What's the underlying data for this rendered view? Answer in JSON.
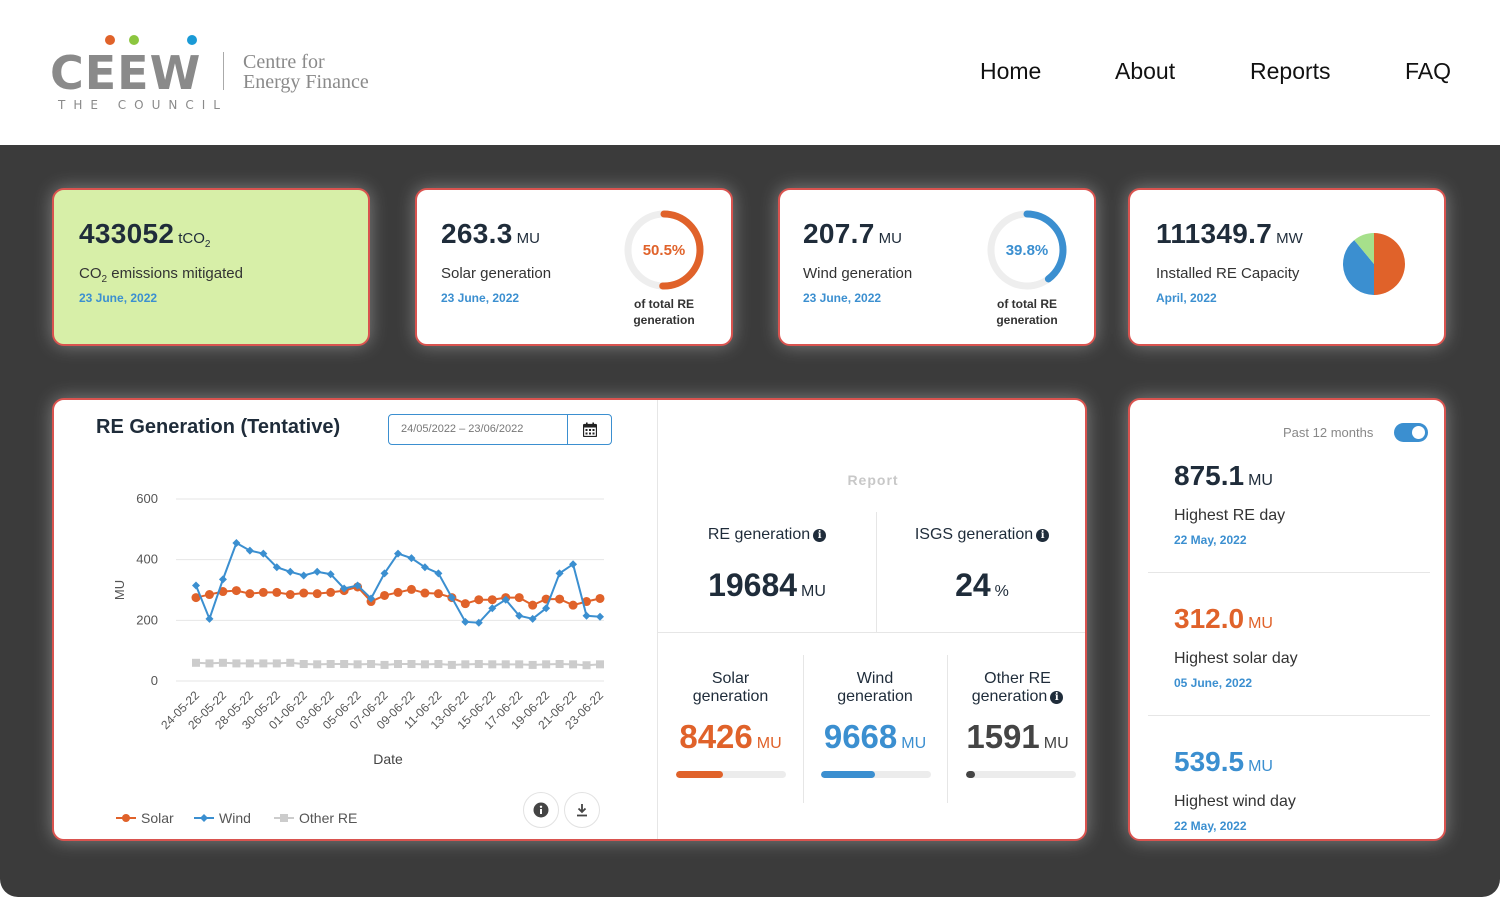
{
  "header": {
    "logo": {
      "word": "CEEW",
      "subtitle": "THE COUNCIL",
      "tagline_1": "Centre for",
      "tagline_2": "Energy Finance",
      "dot_colors": [
        "#e0622a",
        "#8cc63f",
        "#1a9ad6"
      ]
    },
    "nav": [
      {
        "label": "Home"
      },
      {
        "label": "About"
      },
      {
        "label": "Reports"
      },
      {
        "label": "FAQ"
      }
    ]
  },
  "kpis": {
    "emissions": {
      "value": "433052",
      "unit": "tCO",
      "unit_sub": "2",
      "label_pre": "CO",
      "label_sub": "2",
      "label_post": " emissions mitigated",
      "date": "23 June, 2022"
    },
    "solar": {
      "value": "263.3",
      "unit": "MU",
      "label": "Solar generation",
      "date": "23 June, 2022",
      "share_text": "50.5%",
      "share": 50.5,
      "caption_1": "of total RE",
      "caption_2": "generation",
      "color": "#e0622a"
    },
    "wind": {
      "value": "207.7",
      "unit": "MU",
      "label": "Wind generation",
      "date": "23 June, 2022",
      "share_text": "39.8%",
      "share": 39.8,
      "caption_1": "of total RE",
      "caption_2": "generation",
      "color": "#3b8fd0"
    },
    "capacity": {
      "value": "111349.7",
      "unit": "MW",
      "label": "Installed RE Capacity",
      "date": "April, 2022",
      "pie": [
        {
          "share": 0.5,
          "color": "#e0622a"
        },
        {
          "share": 0.39,
          "color": "#3b8fd0"
        },
        {
          "share": 0.11,
          "color": "#a6e08b"
        }
      ]
    }
  },
  "chart_panel": {
    "title": "RE Generation (Tentative)",
    "date_range": "24/05/2022  – 23/06/2022",
    "calendar_icon": "calendar-icon",
    "info_icon": "info-icon",
    "download_icon": "download-icon"
  },
  "chart_data": {
    "type": "line",
    "title": "RE Generation (Tentative)",
    "xlabel": "Date",
    "ylabel": "MU",
    "ylim": [
      0,
      600
    ],
    "yticks": [
      0,
      200,
      400,
      600
    ],
    "grid": true,
    "legend_position": "bottom-left",
    "x": [
      "24-05-22",
      "25-05-22",
      "26-05-22",
      "27-05-22",
      "28-05-22",
      "29-05-22",
      "30-05-22",
      "31-05-22",
      "01-06-22",
      "02-06-22",
      "03-06-22",
      "04-06-22",
      "05-06-22",
      "06-06-22",
      "07-06-22",
      "08-06-22",
      "09-06-22",
      "10-06-22",
      "11-06-22",
      "12-06-22",
      "13-06-22",
      "14-06-22",
      "15-06-22",
      "16-06-22",
      "17-06-22",
      "18-06-22",
      "19-06-22",
      "20-06-22",
      "21-06-22",
      "22-06-22",
      "23-06-22"
    ],
    "x_tick_labels": [
      "24-05-22",
      "26-05-22",
      "28-05-22",
      "30-05-22",
      "01-06-22",
      "03-06-22",
      "05-06-22",
      "07-06-22",
      "09-06-22",
      "11-06-22",
      "13-06-22",
      "15-06-22",
      "17-06-22",
      "19-06-22",
      "21-06-22",
      "23-06-22"
    ],
    "series": [
      {
        "name": "Solar",
        "color": "#e0622a",
        "marker": "circle",
        "values": [
          275,
          285,
          295,
          298,
          288,
          292,
          292,
          285,
          290,
          288,
          292,
          298,
          310,
          262,
          282,
          292,
          302,
          290,
          288,
          275,
          255,
          268,
          268,
          275,
          275,
          250,
          270,
          270,
          250,
          262,
          272
        ]
      },
      {
        "name": "Wind",
        "color": "#3b8fd0",
        "marker": "diamond",
        "values": [
          315,
          205,
          335,
          455,
          430,
          420,
          375,
          360,
          348,
          360,
          352,
          305,
          315,
          272,
          355,
          420,
          405,
          375,
          355,
          275,
          195,
          192,
          240,
          268,
          215,
          205,
          240,
          355,
          385,
          215,
          212
        ]
      },
      {
        "name": "Other RE",
        "color": "#cccccc",
        "marker": "square",
        "values": [
          60,
          58,
          60,
          58,
          58,
          58,
          58,
          60,
          56,
          55,
          56,
          56,
          55,
          56,
          53,
          56,
          56,
          55,
          56,
          53,
          55,
          56,
          55,
          55,
          55,
          53,
          55,
          56,
          55,
          52,
          55
        ]
      }
    ]
  },
  "report": {
    "title": "Report",
    "re_generation": {
      "label": "RE generation",
      "value": "19684",
      "unit": "MU"
    },
    "isgs_generation": {
      "label": "ISGS generation",
      "value": "24",
      "unit": "%"
    },
    "solar": {
      "label_1": "Solar",
      "label_2": "generation",
      "value": "8426",
      "unit": "MU",
      "color": "#e0622a",
      "share": 0.43
    },
    "wind": {
      "label_1": "Wind",
      "label_2": "generation",
      "value": "9668",
      "unit": "MU",
      "color": "#3b8fd0",
      "share": 0.49
    },
    "other": {
      "label_1": "Other RE",
      "label_2": "generation",
      "value": "1591",
      "unit": "MU",
      "color": "#444444",
      "share": 0.08
    }
  },
  "highlights": {
    "toggle_label": "Past 12 months",
    "toggle_on": true,
    "items": [
      {
        "value": "875.1",
        "unit": "MU",
        "label": "Highest RE day",
        "date": "22 May, 2022",
        "color": "#1f2c3a"
      },
      {
        "value": "312.0",
        "unit": "MU",
        "label": "Highest solar day",
        "date": "05 June, 2022",
        "color": "#e0622a"
      },
      {
        "value": "539.5",
        "unit": "MU",
        "label": "Highest wind day",
        "date": "22 May, 2022",
        "color": "#3b8fd0"
      }
    ]
  }
}
